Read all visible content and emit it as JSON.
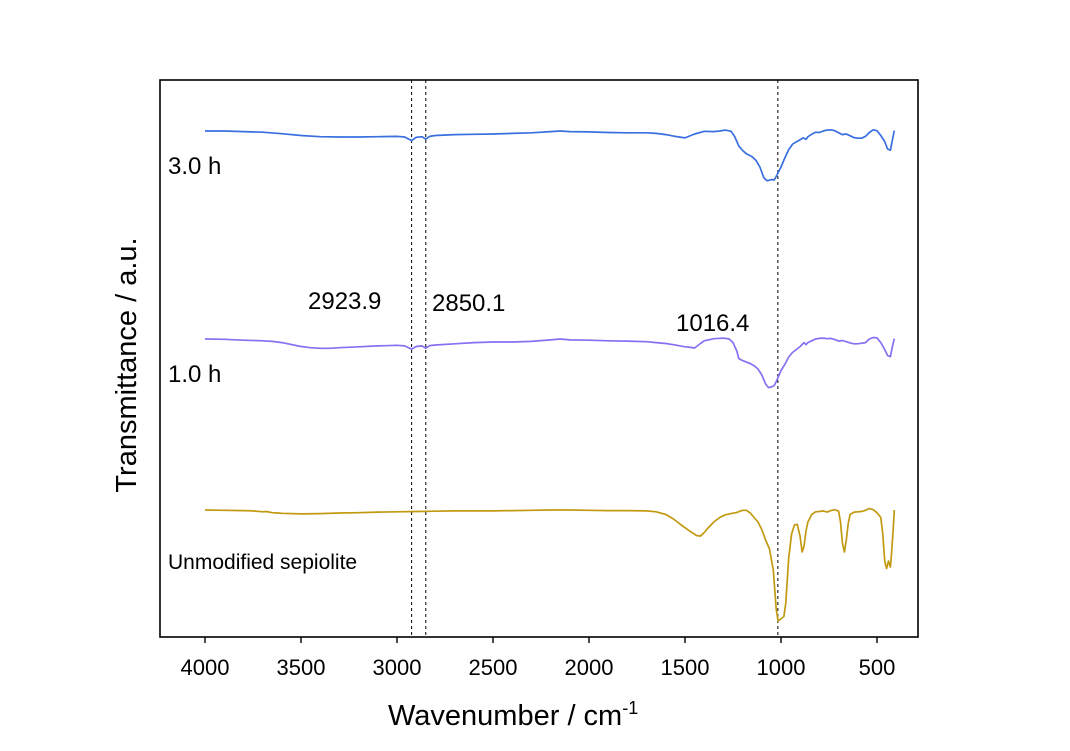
{
  "chart_data": {
    "type": "line",
    "xlabel": "Wavenumber / cm",
    "xlabel_superscript": "-1",
    "ylabel": "Transmittance / a.u.",
    "xlim": [
      4250,
      200
    ],
    "x_reversed": true,
    "xticks": [
      4000,
      3500,
      3000,
      2500,
      2000,
      1500,
      1000,
      500
    ],
    "y_ticks_shown": false,
    "reference_lines": [
      {
        "x": 2923.9,
        "label": "2923.9"
      },
      {
        "x": 2850.1,
        "label": "2850.1"
      },
      {
        "x": 1016.4,
        "label": "1016.4"
      }
    ],
    "series": [
      {
        "name": "3.0 h",
        "color": "#3a6fe0",
        "points": [
          [
            4000,
            0.0
          ],
          [
            3900,
            0.0
          ],
          [
            3800,
            0.2
          ],
          [
            3700,
            0.4
          ],
          [
            3600,
            0.9
          ],
          [
            3500,
            1.5
          ],
          [
            3400,
            1.9
          ],
          [
            3300,
            2.0
          ],
          [
            3200,
            2.0
          ],
          [
            3100,
            1.9
          ],
          [
            3000,
            1.8
          ],
          [
            2960,
            2.0
          ],
          [
            2924,
            3.2
          ],
          [
            2900,
            2.1
          ],
          [
            2870,
            1.9
          ],
          [
            2850,
            2.7
          ],
          [
            2830,
            1.8
          ],
          [
            2800,
            1.5
          ],
          [
            2700,
            1.2
          ],
          [
            2600,
            1.1
          ],
          [
            2500,
            1.0
          ],
          [
            2400,
            0.8
          ],
          [
            2300,
            0.6
          ],
          [
            2200,
            0.2
          ],
          [
            2150,
            0.0
          ],
          [
            2100,
            0.2
          ],
          [
            2000,
            0.3
          ],
          [
            1900,
            0.5
          ],
          [
            1800,
            0.6
          ],
          [
            1700,
            0.6
          ],
          [
            1650,
            0.8
          ],
          [
            1600,
            1.2
          ],
          [
            1560,
            1.7
          ],
          [
            1500,
            2.3
          ],
          [
            1450,
            1.0
          ],
          [
            1400,
            0.1
          ],
          [
            1350,
            0.2
          ],
          [
            1320,
            0.0
          ],
          [
            1290,
            -0.3
          ],
          [
            1260,
            0.1
          ],
          [
            1240,
            2.0
          ],
          [
            1220,
            5.0
          ],
          [
            1200,
            6.5
          ],
          [
            1180,
            7.6
          ],
          [
            1150,
            8.6
          ],
          [
            1130,
            9.8
          ],
          [
            1110,
            12.0
          ],
          [
            1090,
            15.5
          ],
          [
            1075,
            16.5
          ],
          [
            1065,
            16.5
          ],
          [
            1050,
            16.2
          ],
          [
            1035,
            16.3
          ],
          [
            1020,
            14.5
          ],
          [
            1000,
            12.0
          ],
          [
            980,
            9.0
          ],
          [
            960,
            6.2
          ],
          [
            940,
            4.4
          ],
          [
            920,
            3.6
          ],
          [
            900,
            2.9
          ],
          [
            885,
            2.3
          ],
          [
            870,
            2.8
          ],
          [
            860,
            1.9
          ],
          [
            840,
            1.1
          ],
          [
            820,
            0.4
          ],
          [
            800,
            0.5
          ],
          [
            780,
            0.0
          ],
          [
            760,
            -0.3
          ],
          [
            740,
            -0.4
          ],
          [
            720,
            -0.1
          ],
          [
            700,
            0.6
          ],
          [
            680,
            1.2
          ],
          [
            660,
            1.0
          ],
          [
            640,
            1.6
          ],
          [
            620,
            2.2
          ],
          [
            600,
            2.4
          ],
          [
            580,
            2.4
          ],
          [
            560,
            1.8
          ],
          [
            540,
            0.5
          ],
          [
            520,
            -0.4
          ],
          [
            500,
            -0.1
          ],
          [
            480,
            1.5
          ],
          [
            460,
            3.5
          ],
          [
            445,
            6.0
          ],
          [
            430,
            6.4
          ],
          [
            420,
            3.0
          ],
          [
            410,
            -0.1
          ]
        ]
      },
      {
        "name": "1.0 h",
        "color": "#8a6ff2",
        "points": [
          [
            4000,
            0.0
          ],
          [
            3900,
            0.1
          ],
          [
            3800,
            0.4
          ],
          [
            3700,
            0.6
          ],
          [
            3650,
            0.8
          ],
          [
            3600,
            1.2
          ],
          [
            3500,
            2.5
          ],
          [
            3450,
            2.9
          ],
          [
            3400,
            3.1
          ],
          [
            3350,
            3.1
          ],
          [
            3300,
            2.9
          ],
          [
            3200,
            2.6
          ],
          [
            3100,
            2.3
          ],
          [
            3000,
            2.1
          ],
          [
            2960,
            2.3
          ],
          [
            2924,
            3.4
          ],
          [
            2900,
            2.5
          ],
          [
            2870,
            2.3
          ],
          [
            2850,
            3.1
          ],
          [
            2830,
            2.2
          ],
          [
            2800,
            2.0
          ],
          [
            2700,
            1.6
          ],
          [
            2600,
            1.2
          ],
          [
            2500,
            1.0
          ],
          [
            2400,
            1.0
          ],
          [
            2300,
            0.8
          ],
          [
            2200,
            0.3
          ],
          [
            2150,
            0.0
          ],
          [
            2100,
            0.3
          ],
          [
            2000,
            0.4
          ],
          [
            1900,
            0.6
          ],
          [
            1800,
            0.7
          ],
          [
            1700,
            0.9
          ],
          [
            1650,
            1.2
          ],
          [
            1600,
            1.5
          ],
          [
            1560,
            1.9
          ],
          [
            1500,
            2.6
          ],
          [
            1470,
            2.8
          ],
          [
            1450,
            3.0
          ],
          [
            1420,
            1.5
          ],
          [
            1400,
            0.6
          ],
          [
            1350,
            -0.1
          ],
          [
            1300,
            -0.3
          ],
          [
            1270,
            0.0
          ],
          [
            1250,
            1.2
          ],
          [
            1230,
            4.0
          ],
          [
            1220,
            6.5
          ],
          [
            1200,
            7.2
          ],
          [
            1180,
            7.7
          ],
          [
            1160,
            8.2
          ],
          [
            1140,
            8.9
          ],
          [
            1120,
            10.0
          ],
          [
            1100,
            12.0
          ],
          [
            1080,
            15.0
          ],
          [
            1065,
            16.2
          ],
          [
            1050,
            16.0
          ],
          [
            1035,
            15.5
          ],
          [
            1020,
            13.5
          ],
          [
            1000,
            10.5
          ],
          [
            980,
            8.5
          ],
          [
            960,
            6.0
          ],
          [
            940,
            4.5
          ],
          [
            920,
            3.5
          ],
          [
            900,
            2.5
          ],
          [
            880,
            1.2
          ],
          [
            870,
            1.9
          ],
          [
            860,
            1.2
          ],
          [
            840,
            0.6
          ],
          [
            820,
            0.0
          ],
          [
            800,
            -0.2
          ],
          [
            780,
            -0.3
          ],
          [
            760,
            -0.1
          ],
          [
            740,
            -0.2
          ],
          [
            720,
            0.2
          ],
          [
            700,
            0.7
          ],
          [
            680,
            0.5
          ],
          [
            660,
            0.9
          ],
          [
            640,
            1.3
          ],
          [
            620,
            1.6
          ],
          [
            600,
            1.6
          ],
          [
            580,
            1.4
          ],
          [
            560,
            1.2
          ],
          [
            540,
            0.0
          ],
          [
            520,
            -0.5
          ],
          [
            500,
            -0.4
          ],
          [
            480,
            1.2
          ],
          [
            460,
            3.5
          ],
          [
            445,
            5.5
          ],
          [
            430,
            5.9
          ],
          [
            420,
            2.5
          ],
          [
            410,
            -0.1
          ]
        ]
      },
      {
        "name": "Unmodified sepiolite",
        "color": "#c29a12",
        "points": [
          [
            4000,
            0.0
          ],
          [
            3900,
            0.1
          ],
          [
            3800,
            0.2
          ],
          [
            3750,
            0.3
          ],
          [
            3700,
            0.6
          ],
          [
            3680,
            0.5
          ],
          [
            3650,
            0.9
          ],
          [
            3620,
            1.0
          ],
          [
            3600,
            1.1
          ],
          [
            3500,
            1.3
          ],
          [
            3400,
            1.2
          ],
          [
            3300,
            1.0
          ],
          [
            3200,
            0.9
          ],
          [
            3100,
            0.7
          ],
          [
            3000,
            0.6
          ],
          [
            2900,
            0.5
          ],
          [
            2800,
            0.4
          ],
          [
            2700,
            0.3
          ],
          [
            2600,
            0.3
          ],
          [
            2500,
            0.3
          ],
          [
            2400,
            0.2
          ],
          [
            2300,
            0.1
          ],
          [
            2200,
            0.0
          ],
          [
            2100,
            0.0
          ],
          [
            2000,
            0.1
          ],
          [
            1900,
            0.2
          ],
          [
            1800,
            0.2
          ],
          [
            1700,
            0.3
          ],
          [
            1650,
            0.6
          ],
          [
            1600,
            1.5
          ],
          [
            1560,
            3.0
          ],
          [
            1520,
            5.0
          ],
          [
            1480,
            6.8
          ],
          [
            1440,
            8.5
          ],
          [
            1420,
            8.7
          ],
          [
            1400,
            7.5
          ],
          [
            1380,
            6.0
          ],
          [
            1350,
            4.0
          ],
          [
            1320,
            2.5
          ],
          [
            1290,
            1.6
          ],
          [
            1260,
            1.2
          ],
          [
            1230,
            0.8
          ],
          [
            1200,
            0.1
          ],
          [
            1180,
            0.1
          ],
          [
            1160,
            1.0
          ],
          [
            1140,
            2.5
          ],
          [
            1120,
            4.0
          ],
          [
            1100,
            6.5
          ],
          [
            1080,
            10.0
          ],
          [
            1060,
            13.0
          ],
          [
            1040,
            20.0
          ],
          [
            1025,
            33.0
          ],
          [
            1015,
            37.0
          ],
          [
            1005,
            36.5
          ],
          [
            995,
            36.0
          ],
          [
            985,
            35.5
          ],
          [
            975,
            31.0
          ],
          [
            960,
            16.0
          ],
          [
            945,
            8.0
          ],
          [
            930,
            5.0
          ],
          [
            915,
            4.8
          ],
          [
            900,
            9.0
          ],
          [
            890,
            14.0
          ],
          [
            880,
            12.0
          ],
          [
            870,
            7.0
          ],
          [
            860,
            4.0
          ],
          [
            840,
            1.5
          ],
          [
            820,
            0.6
          ],
          [
            800,
            0.5
          ],
          [
            780,
            0.3
          ],
          [
            760,
            0.7
          ],
          [
            740,
            0.2
          ],
          [
            720,
            -0.1
          ],
          [
            700,
            0.4
          ],
          [
            690,
            4.0
          ],
          [
            680,
            11.0
          ],
          [
            670,
            14.0
          ],
          [
            660,
            10.0
          ],
          [
            650,
            4.5
          ],
          [
            640,
            1.5
          ],
          [
            620,
            0.7
          ],
          [
            600,
            0.6
          ],
          [
            580,
            0.5
          ],
          [
            560,
            0.1
          ],
          [
            540,
            -0.5
          ],
          [
            520,
            -0.1
          ],
          [
            500,
            0.9
          ],
          [
            480,
            2.5
          ],
          [
            470,
            8.0
          ],
          [
            460,
            17.0
          ],
          [
            450,
            19.5
          ],
          [
            440,
            17.0
          ],
          [
            430,
            19.0
          ],
          [
            425,
            15.0
          ],
          [
            415,
            6.0
          ],
          [
            410,
            0.0
          ]
        ]
      }
    ],
    "series_labels": [
      "3.0 h",
      "1.0 h",
      "Unmodified sepiolite"
    ]
  }
}
